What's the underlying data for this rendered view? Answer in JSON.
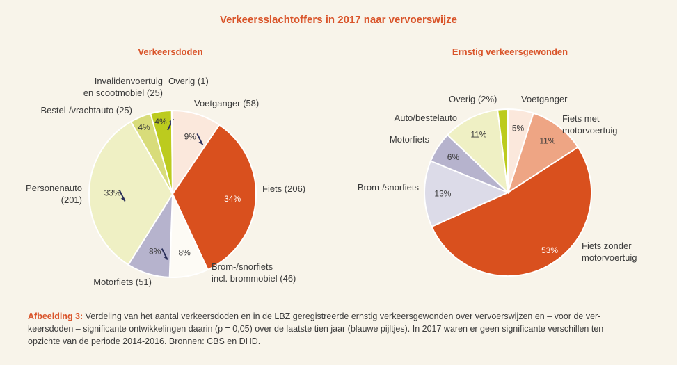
{
  "title": "Verkeersslachtoffers in 2017 naar vervoerswijze",
  "chart_data": [
    {
      "type": "pie",
      "title": "Verkeersdoden",
      "slices": [
        {
          "label_lines": [
            "Voetganger (58)"
          ],
          "value": 58,
          "pct": "9%",
          "color": "#fbe8dc",
          "arrow": "down"
        },
        {
          "label_lines": [
            "Fiets (206)"
          ],
          "value": 206,
          "pct": "34%",
          "color": "#d9501e",
          "arrow": ""
        },
        {
          "label_lines": [
            "Brom-/snorfiets",
            "incl. brommobiel (46)"
          ],
          "value": 46,
          "pct": "8%",
          "color": "#fdfbf5",
          "arrow": ""
        },
        {
          "label_lines": [
            "Motorfiets (51)"
          ],
          "value": 51,
          "pct": "8%",
          "color": "#b6b3cd",
          "arrow": "down"
        },
        {
          "label_lines": [
            "Personenauto",
            "(201)"
          ],
          "value": 201,
          "pct": "33%",
          "color": "#eff0c4",
          "arrow": "down"
        },
        {
          "label_lines": [
            "Bestel-/vrachtauto (25)"
          ],
          "value": 25,
          "pct": "4%",
          "color": "#d8dc7a",
          "arrow": ""
        },
        {
          "label_lines": [
            "Invalidenvoertuig",
            "en scootmobiel (25)"
          ],
          "value": 25,
          "pct": "4%",
          "color": "#bccb1e",
          "arrow": "up"
        },
        {
          "label_lines": [
            "Overig (1)"
          ],
          "value": 1,
          "pct": "",
          "color": "#8da213",
          "arrow": ""
        }
      ]
    },
    {
      "type": "pie",
      "title": "Ernstig verkeersgewonden",
      "slices": [
        {
          "label_lines": [
            "Voetganger"
          ],
          "value": 5,
          "pct": "5%",
          "color": "#fbe8dc"
        },
        {
          "label_lines": [
            "Fiets met",
            "motorvoertuig"
          ],
          "value": 11,
          "pct": "11%",
          "color": "#eea584"
        },
        {
          "label_lines": [
            "Fiets zonder",
            "motorvoertuig"
          ],
          "value": 53,
          "pct": "53%",
          "color": "#d9501e"
        },
        {
          "label_lines": [
            "Brom-/snorfiets"
          ],
          "value": 13,
          "pct": "13%",
          "color": "#dcdbe8"
        },
        {
          "label_lines": [
            "Motorfiets"
          ],
          "value": 6,
          "pct": "6%",
          "color": "#b6b3cd"
        },
        {
          "label_lines": [
            "Auto/bestelauto"
          ],
          "value": 11,
          "pct": "11%",
          "color": "#eff0c4"
        },
        {
          "label_lines": [
            "Overig (2%)"
          ],
          "value": 2,
          "pct": "",
          "color": "#bccb1e"
        }
      ]
    }
  ],
  "caption": {
    "lead": "Afbeelding 3:",
    "line1": " Verdeling van het aantal verkeersdoden en in de LBZ geregistreerde ernstig verkeersgewonden over vervoerswijzen en – voor de ver-",
    "line2": "keersdoden – significante ontwikkelingen daarin (p = 0,05) over de laatste tien jaar (blauwe pijltjes). In 2017 waren er geen significante verschillen ten",
    "line3": "opzichte van de periode 2014-2016. Bronnen: CBS en DHD."
  },
  "colors": {
    "accent": "#d9542a",
    "arrow": "#2b2f5a",
    "background": "#f8f4ea"
  }
}
